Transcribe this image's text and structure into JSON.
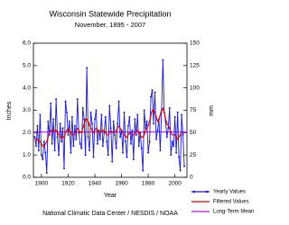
{
  "chart_data": {
    "type": "line",
    "title": "Wisconsin Statewide Precipitation",
    "subtitle": "November, 1895 - 2007",
    "xlabel": "Year",
    "ylabel": "Inches",
    "y2label": "mm",
    "source": "National Climatic Data Center / NESDIS / NOAA",
    "x": [
      1895,
      1896,
      1897,
      1898,
      1899,
      1900,
      1901,
      1902,
      1903,
      1904,
      1905,
      1906,
      1907,
      1908,
      1909,
      1910,
      1911,
      1912,
      1913,
      1914,
      1915,
      1916,
      1917,
      1918,
      1919,
      1920,
      1921,
      1922,
      1923,
      1924,
      1925,
      1926,
      1927,
      1928,
      1929,
      1930,
      1931,
      1932,
      1933,
      1934,
      1935,
      1936,
      1937,
      1938,
      1939,
      1940,
      1941,
      1942,
      1943,
      1944,
      1945,
      1946,
      1947,
      1948,
      1949,
      1950,
      1951,
      1952,
      1953,
      1954,
      1955,
      1956,
      1957,
      1958,
      1959,
      1960,
      1961,
      1962,
      1963,
      1964,
      1965,
      1966,
      1967,
      1968,
      1969,
      1970,
      1971,
      1972,
      1973,
      1974,
      1975,
      1976,
      1977,
      1978,
      1979,
      1980,
      1981,
      1982,
      1983,
      1984,
      1985,
      1986,
      1987,
      1988,
      1989,
      1990,
      1991,
      1992,
      1993,
      1994,
      1995,
      1996,
      1997,
      1998,
      1999,
      2000,
      2001,
      2002,
      2003,
      2004,
      2005,
      2006,
      2007
    ],
    "xlim": [
      1894,
      2009
    ],
    "xticks": [
      1900,
      1920,
      1940,
      1960,
      1980,
      2000
    ],
    "ylim": [
      0,
      6
    ],
    "yticks": [
      {
        "value": 0,
        "label": "0.0"
      },
      {
        "value": 1,
        "label": "1.0"
      },
      {
        "value": 2,
        "label": "2.0"
      },
      {
        "value": 3,
        "label": "3.0"
      },
      {
        "value": 4,
        "label": "4.0"
      },
      {
        "value": 5,
        "label": "5.0"
      },
      {
        "value": 6,
        "label": "6.0"
      }
    ],
    "y2lim": [
      0,
      150
    ],
    "y2ticks": [
      0,
      25,
      50,
      75,
      100,
      125,
      150
    ],
    "legend": "bottom right",
    "series": [
      {
        "name": "Yearly Values",
        "color": "#1a1ad0",
        "marker": true,
        "values": [
          1.8,
          1.4,
          2.3,
          1.2,
          2.8,
          1.0,
          0.8,
          1.6,
          1.1,
          0.2,
          2.5,
          1.9,
          3.3,
          1.5,
          2.6,
          1.2,
          3.5,
          1.8,
          1.0,
          2.4,
          1.6,
          2.2,
          0.4,
          3.4,
          2.9,
          1.9,
          2.5,
          1.1,
          2.7,
          1.4,
          2.3,
          1.7,
          3.5,
          2.0,
          1.5,
          1.3,
          3.1,
          2.6,
          1.0,
          4.9,
          1.8,
          1.2,
          2.9,
          2.4,
          0.9,
          2.6,
          3.0,
          1.5,
          2.1,
          1.7,
          2.8,
          1.4,
          2.0,
          2.7,
          1.6,
          1.0,
          3.2,
          2.2,
          0.7,
          2.5,
          1.9,
          1.3,
          2.4,
          3.4,
          1.8,
          2.1,
          1.1,
          2.9,
          1.6,
          0.9,
          2.3,
          2.7,
          1.5,
          2.1,
          0.8,
          2.6,
          1.9,
          2.8,
          1.4,
          2.0,
          1.3,
          0.3,
          3.0,
          2.2,
          2.5,
          1.1,
          1.6,
          3.6,
          3.9,
          2.4,
          3.8,
          1.7,
          2.1,
          2.6,
          1.2,
          3.0,
          5.25,
          2.9,
          2.5,
          1.8,
          2.2,
          3.1,
          1.0,
          1.6,
          1.4,
          2.7,
          1.1,
          2.9,
          0.9,
          0.3,
          2.8,
          1.9,
          0.5
        ]
      },
      {
        "name": "Filtered Values",
        "color": "#e00000",
        "marker": false,
        "values": [
          1.7,
          1.7,
          1.7,
          1.6,
          1.6,
          1.5,
          1.4,
          1.4,
          1.5,
          1.6,
          1.8,
          2.0,
          2.1,
          2.1,
          2.1,
          2.1,
          2.1,
          2.0,
          1.9,
          1.8,
          1.8,
          1.8,
          1.8,
          2.0,
          2.1,
          2.2,
          2.1,
          2.0,
          1.9,
          1.9,
          2.0,
          2.1,
          2.2,
          2.1,
          2.0,
          2.0,
          2.2,
          2.4,
          2.6,
          2.6,
          2.5,
          2.3,
          2.2,
          2.1,
          2.0,
          2.1,
          2.2,
          2.1,
          2.0,
          2.0,
          2.1,
          2.1,
          2.1,
          2.0,
          1.9,
          1.9,
          2.0,
          2.1,
          2.0,
          2.0,
          2.0,
          2.1,
          2.2,
          2.3,
          2.2,
          2.1,
          2.0,
          1.9,
          1.8,
          1.8,
          1.9,
          2.0,
          2.0,
          1.9,
          1.9,
          2.0,
          2.1,
          2.1,
          2.0,
          1.9,
          1.8,
          1.8,
          1.9,
          2.1,
          2.2,
          2.3,
          2.5,
          2.8,
          3.0,
          3.0,
          2.9,
          2.7,
          2.5,
          2.6,
          2.8,
          3.0,
          3.1,
          2.9,
          2.6,
          2.4,
          2.3,
          2.2,
          2.0,
          1.9,
          1.9,
          1.9,
          1.8,
          1.7,
          1.8,
          1.9,
          2.0,
          2.0,
          2.0
        ]
      }
    ],
    "mean": {
      "name": "Long-Term Mean",
      "color": "#b020d0",
      "value": 2.03
    }
  }
}
